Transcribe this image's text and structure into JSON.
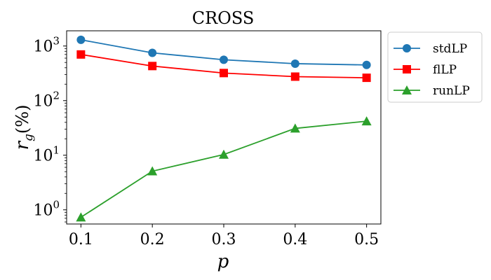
{
  "chart_data": {
    "type": "line",
    "title": "CROSS",
    "xlabel": "p",
    "ylabel_main": "r",
    "ylabel_sub": "g",
    "ylabel_suffix": "(%)",
    "y_scale": "log",
    "x": [
      0.1,
      0.2,
      0.3,
      0.4,
      0.5
    ],
    "xlim": [
      0.08,
      0.52
    ],
    "ylim": [
      0.55,
      1900
    ],
    "x_ticks": [
      {
        "value": 0.1,
        "label": "0.1"
      },
      {
        "value": 0.2,
        "label": "0.2"
      },
      {
        "value": 0.3,
        "label": "0.3"
      },
      {
        "value": 0.4,
        "label": "0.4"
      },
      {
        "value": 0.5,
        "label": "0.5"
      }
    ],
    "y_ticks": [
      {
        "value": 1,
        "base": "10",
        "exp": "0"
      },
      {
        "value": 10,
        "base": "10",
        "exp": "1"
      },
      {
        "value": 100,
        "base": "10",
        "exp": "2"
      },
      {
        "value": 1000,
        "base": "10",
        "exp": "3"
      }
    ],
    "grid": false,
    "legend_position": "outside-right-top",
    "series": [
      {
        "name": "stdLP",
        "color": "#1f77b4",
        "marker": "circle",
        "values": [
          1300,
          750,
          560,
          475,
          450
        ]
      },
      {
        "name": "flLP",
        "color": "#ff0000",
        "marker": "square",
        "values": [
          700,
          430,
          320,
          275,
          262
        ]
      },
      {
        "name": "runLP",
        "color": "#2ca02c",
        "marker": "triangle",
        "values": [
          0.73,
          5.1,
          10.3,
          31,
          42
        ]
      }
    ]
  }
}
